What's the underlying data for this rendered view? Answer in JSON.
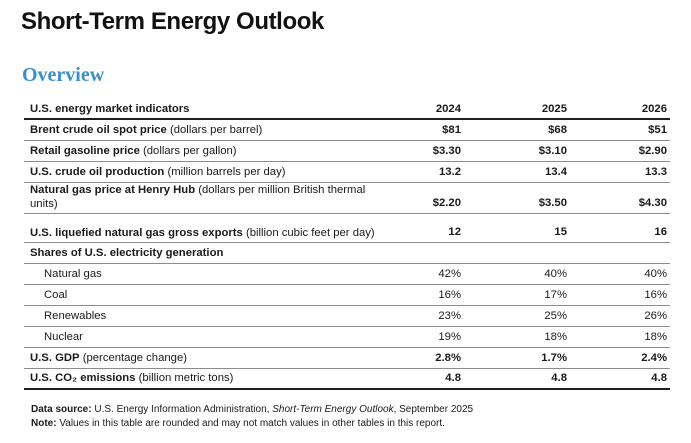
{
  "page_title": "Short-Term Energy Outlook",
  "section_heading": "Overview",
  "table": {
    "header": {
      "label": "U.S. energy market indicators",
      "years": [
        "2024",
        "2025",
        "2026"
      ]
    },
    "rows": [
      {
        "bold": "Brent crude oil spot price",
        "unit": " (dollars per barrel)",
        "values": [
          "$81",
          "$68",
          "$51"
        ]
      },
      {
        "bold": "Retail gasoline price",
        "unit": " (dollars per gallon)",
        "values": [
          "$3.30",
          "$3.10",
          "$2.90"
        ]
      },
      {
        "bold": "U.S. crude oil production",
        "unit": " (million barrels per day)",
        "values": [
          "13.2",
          "13.4",
          "13.3"
        ]
      },
      {
        "bold": "Natural gas price at Henry Hub",
        "unit": " (dollars per million British thermal units)",
        "values": [
          "$2.20",
          "$3.50",
          "$4.30"
        ]
      },
      {
        "bold": "U.S. liquefied natural gas gross exports",
        "unit": " (billion cubic feet per day)",
        "values": [
          "12",
          "15",
          "16"
        ]
      },
      {
        "bold": "Shares of U.S. electricity generation",
        "unit": "",
        "values": [
          "",
          "",
          ""
        ]
      },
      {
        "bold": "",
        "unit": "Natural gas",
        "values": [
          "42%",
          "40%",
          "40%"
        ]
      },
      {
        "bold": "",
        "unit": "Coal",
        "values": [
          "16%",
          "17%",
          "16%"
        ]
      },
      {
        "bold": "",
        "unit": "Renewables",
        "values": [
          "23%",
          "25%",
          "26%"
        ]
      },
      {
        "bold": "",
        "unit": "Nuclear",
        "values": [
          "19%",
          "18%",
          "18%"
        ]
      },
      {
        "bold": "U.S. GDP",
        "unit": " (percentage change)",
        "values": [
          "2.8%",
          "1.7%",
          "2.4%"
        ]
      },
      {
        "bold": "U.S. CO₂ emissions",
        "unit": " (billion metric tons)",
        "values": [
          "4.8",
          "4.8",
          "4.8"
        ]
      }
    ]
  },
  "footer": {
    "source_label": "Data source:",
    "source_text_before": " U.S. Energy Information Administration, ",
    "source_publication": "Short-Term Energy Outlook",
    "source_text_after": ", September 2025",
    "note_label": "Note:",
    "note_text": " Values in this table are rounded and may not match values in other tables in this report."
  }
}
